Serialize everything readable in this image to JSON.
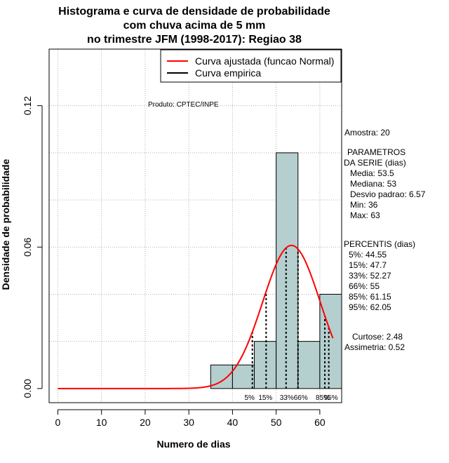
{
  "chart_data": {
    "type": "histogram",
    "title": [
      "Histograma e curva de densidade de probabilidade",
      "com chuva acima de 5 mm",
      "no trimestre JFM (1998-2017): Regiao 38"
    ],
    "xlabel": "Numero de dias",
    "ylabel": "Densidade de probabilidade",
    "xlim": [
      -2,
      65
    ],
    "ylim": [
      -0.006,
      0.144
    ],
    "x_ticks": [
      0,
      10,
      20,
      30,
      40,
      50,
      60
    ],
    "y_ticks": [
      0.0,
      0.06,
      0.12
    ],
    "y_tick_labels": [
      "0.00",
      "0.06",
      "0.12"
    ],
    "grid": true,
    "grid_x": [
      0,
      10,
      20,
      30,
      40,
      50,
      60
    ],
    "grid_y": [
      0.02,
      0.04,
      0.06,
      0.08,
      0.1,
      0.12
    ],
    "bins": [
      {
        "from": 35,
        "to": 40,
        "density": 0.01
      },
      {
        "from": 40,
        "to": 45,
        "density": 0.01
      },
      {
        "from": 45,
        "to": 50,
        "density": 0.02
      },
      {
        "from": 50,
        "to": 55,
        "density": 0.1
      },
      {
        "from": 55,
        "to": 60,
        "density": 0.02
      },
      {
        "from": 60,
        "to": 65,
        "density": 0.04
      }
    ],
    "normal_fit": {
      "mean": 53.5,
      "sd": 6.57,
      "x_from": 0,
      "x_to": 63
    },
    "percentiles": [
      {
        "label": "5%",
        "value": 44.55
      },
      {
        "label": "15%",
        "value": 47.7
      },
      {
        "label": "33%",
        "value": 52.27
      },
      {
        "label": "66%",
        "value": 55
      },
      {
        "label": "85%",
        "value": 61.15
      },
      {
        "label": "95%",
        "value": 62.05
      }
    ],
    "legend": [
      {
        "label": "Curva ajustada (funcao Normal)",
        "color": "#ff0000"
      },
      {
        "label": "Curva empirica",
        "color": "#000000"
      }
    ],
    "legend_position": "top-right",
    "product_label": "Produto: CPTEC/INPE",
    "stats_panel": {
      "amostra": "Amostra: 20",
      "param_header": [
        "PARAMETROS",
        "DA SERIE (dias)"
      ],
      "params": [
        "Media: 53.5",
        "Mediana: 53",
        "Desvio padrao: 6.57",
        "Min: 36",
        "Max: 63"
      ],
      "perc_header": "PERCENTIS (dias)",
      "percs": [
        "5%: 44.55",
        "15%: 47.7",
        "33%: 52.27",
        "66%: 55",
        "85%: 61.15",
        "95%: 62.05"
      ],
      "curtose": "Curtose: 2.48",
      "assimetria": "Assimetria: 0.52"
    },
    "colors": {
      "bar_fill": "#b5cfcf",
      "bar_stroke": "#000000",
      "curve": "#ff0000",
      "grid": "#b0b0b0"
    }
  }
}
